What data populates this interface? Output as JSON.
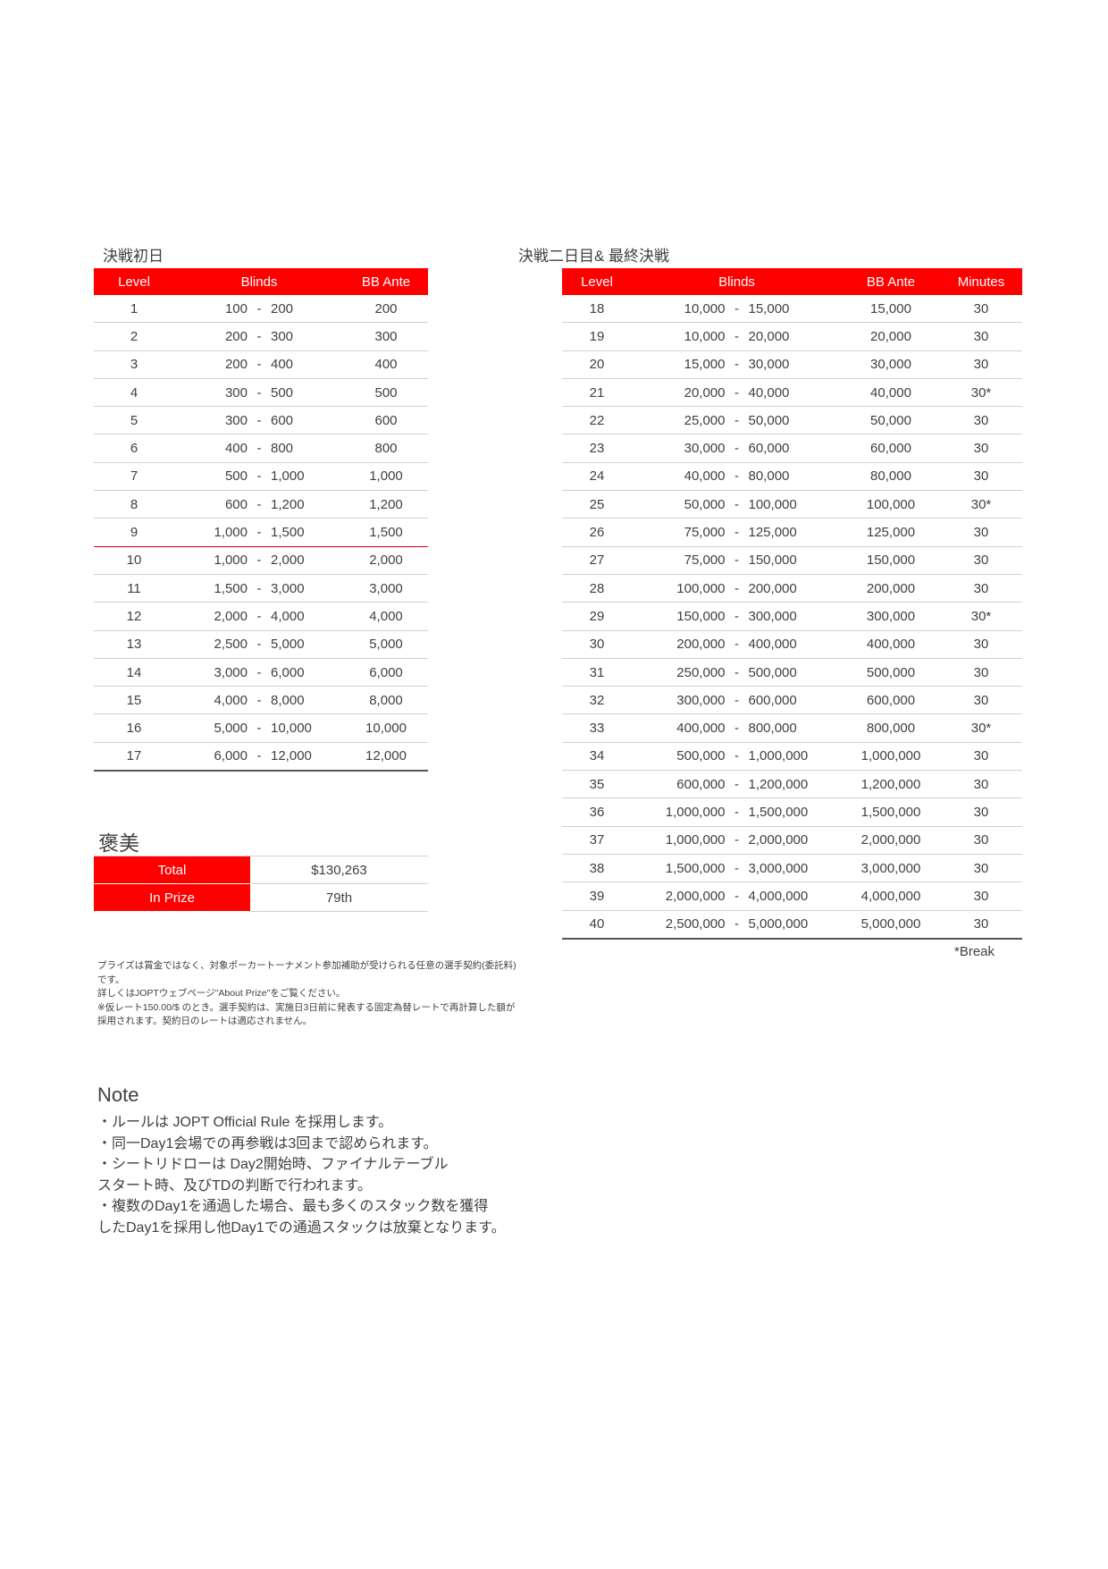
{
  "day1": {
    "title": "決戦初日",
    "headers": [
      "Level",
      "Blinds",
      "BB Ante"
    ],
    "rows": [
      [
        "1",
        "100",
        "200",
        "200"
      ],
      [
        "2",
        "200",
        "300",
        "300"
      ],
      [
        "3",
        "200",
        "400",
        "400"
      ],
      [
        "4",
        "300",
        "500",
        "500"
      ],
      [
        "5",
        "300",
        "600",
        "600"
      ],
      [
        "6",
        "400",
        "800",
        "800"
      ],
      [
        "7",
        "500",
        "1,000",
        "1,000"
      ],
      [
        "8",
        "600",
        "1,200",
        "1,200"
      ],
      [
        "9",
        "1,000",
        "1,500",
        "1,500"
      ],
      [
        "10",
        "1,000",
        "2,000",
        "2,000"
      ],
      [
        "11",
        "1,500",
        "3,000",
        "3,000"
      ],
      [
        "12",
        "2,000",
        "4,000",
        "4,000"
      ],
      [
        "13",
        "2,500",
        "5,000",
        "5,000"
      ],
      [
        "14",
        "3,000",
        "6,000",
        "6,000"
      ],
      [
        "15",
        "4,000",
        "8,000",
        "8,000"
      ],
      [
        "16",
        "5,000",
        "10,000",
        "10,000"
      ],
      [
        "17",
        "6,000",
        "12,000",
        "12,000"
      ]
    ]
  },
  "day2": {
    "title": "決戦二日目& 最終決戦",
    "headers": [
      "Level",
      "Blinds",
      "BB Ante",
      "Minutes"
    ],
    "rows": [
      [
        "18",
        "10,000",
        "15,000",
        "15,000",
        "30"
      ],
      [
        "19",
        "10,000",
        "20,000",
        "20,000",
        "30"
      ],
      [
        "20",
        "15,000",
        "30,000",
        "30,000",
        "30"
      ],
      [
        "21",
        "20,000",
        "40,000",
        "40,000",
        "30*"
      ],
      [
        "22",
        "25,000",
        "50,000",
        "50,000",
        "30"
      ],
      [
        "23",
        "30,000",
        "60,000",
        "60,000",
        "30"
      ],
      [
        "24",
        "40,000",
        "80,000",
        "80,000",
        "30"
      ],
      [
        "25",
        "50,000",
        "100,000",
        "100,000",
        "30*"
      ],
      [
        "26",
        "75,000",
        "125,000",
        "125,000",
        "30"
      ],
      [
        "27",
        "75,000",
        "150,000",
        "150,000",
        "30"
      ],
      [
        "28",
        "100,000",
        "200,000",
        "200,000",
        "30"
      ],
      [
        "29",
        "150,000",
        "300,000",
        "300,000",
        "30*"
      ],
      [
        "30",
        "200,000",
        "400,000",
        "400,000",
        "30"
      ],
      [
        "31",
        "250,000",
        "500,000",
        "500,000",
        "30"
      ],
      [
        "32",
        "300,000",
        "600,000",
        "600,000",
        "30"
      ],
      [
        "33",
        "400,000",
        "800,000",
        "800,000",
        "30*"
      ],
      [
        "34",
        "500,000",
        "1,000,000",
        "1,000,000",
        "30"
      ],
      [
        "35",
        "600,000",
        "1,200,000",
        "1,200,000",
        "30"
      ],
      [
        "36",
        "1,000,000",
        "1,500,000",
        "1,500,000",
        "30"
      ],
      [
        "37",
        "1,000,000",
        "2,000,000",
        "2,000,000",
        "30"
      ],
      [
        "38",
        "1,500,000",
        "3,000,000",
        "3,000,000",
        "30"
      ],
      [
        "39",
        "2,000,000",
        "4,000,000",
        "4,000,000",
        "30"
      ],
      [
        "40",
        "2,500,000",
        "5,000,000",
        "5,000,000",
        "30"
      ]
    ],
    "break_note": "*Break"
  },
  "blind_sep": "-",
  "prize": {
    "title": "褒美",
    "rows": [
      {
        "label": "Total",
        "value": "$130,263"
      },
      {
        "label": "In Prize",
        "value": "79th"
      }
    ],
    "notes": [
      "プライズは賞金ではなく、対象ポーカートーナメント参加補助が受けられる任意の選手契約(委託料)",
      "です。",
      "詳しくはJOPTウェブページ\"About Prize\"をご覧ください。",
      "※仮レート150.00/$ のとき。選手契約は、実施日3日前に発表する固定為替レートで再計算した額が",
      "採用されます。契約日のレートは適応されません。"
    ]
  },
  "note": {
    "title": "Note",
    "lines": [
      "・ルールは JOPT Official Rule を採用します。",
      "・同一Day1会場での再参戦は3回まで認められます。",
      "・シートリドローは Day2開始時、ファイナルテーブル",
      "スタート時、及びTDの判断で行われます。",
      "・複数のDay1を通過した場合、最も多くのスタック数を獲得",
      "したDay1を採用し他Day1での通過スタックは放棄となります。"
    ]
  },
  "colors": {
    "accent": "#ff0000"
  }
}
